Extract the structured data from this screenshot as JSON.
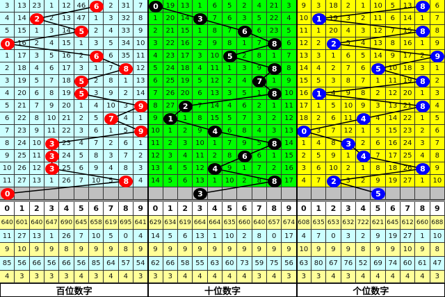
{
  "colors": {
    "hundreds_bg": "#ccffff",
    "tens_bg": "#00ff00",
    "units_bg": "#ffff00",
    "hundreds_ball": "#ff0000",
    "tens_ball": "#000000",
    "units_ball": "#0000ff",
    "predict_row": "#c0c0c0",
    "stat_yellow": "#ffff99",
    "stat_cyan": "#ccffff"
  },
  "digits": [
    "0",
    "1",
    "2",
    "3",
    "4",
    "5",
    "6",
    "7",
    "8",
    "9"
  ],
  "panels": [
    {
      "label": "百位数字",
      "hits": [
        6,
        2,
        5,
        0,
        6,
        8,
        5,
        5,
        9,
        7,
        9,
        3,
        3,
        3,
        8
      ],
      "predict": 0,
      "rows": [
        [
          3,
          13,
          23,
          1,
          12,
          46,
          6,
          2,
          31,
          7
        ],
        [
          4,
          14,
          2,
          2,
          13,
          47,
          1,
          3,
          32,
          8
        ],
        [
          5,
          15,
          1,
          3,
          14,
          5,
          2,
          4,
          33,
          9
        ],
        [
          0,
          16,
          2,
          4,
          15,
          1,
          3,
          5,
          34,
          10
        ],
        [
          1,
          17,
          3,
          5,
          16,
          2,
          6,
          6,
          35,
          11
        ],
        [
          2,
          18,
          4,
          6,
          17,
          3,
          1,
          7,
          8,
          12
        ],
        [
          3,
          19,
          5,
          7,
          18,
          5,
          2,
          8,
          1,
          13
        ],
        [
          4,
          20,
          6,
          8,
          19,
          5,
          3,
          9,
          2,
          14
        ],
        [
          5,
          21,
          7,
          9,
          20,
          1,
          4,
          10,
          3,
          9
        ],
        [
          6,
          22,
          8,
          10,
          21,
          2,
          5,
          7,
          4,
          1
        ],
        [
          7,
          23,
          9,
          11,
          22,
          3,
          6,
          1,
          5,
          9
        ],
        [
          8,
          24,
          10,
          3,
          23,
          4,
          7,
          2,
          6,
          1
        ],
        [
          9,
          25,
          11,
          3,
          24,
          5,
          8,
          3,
          7,
          2
        ],
        [
          10,
          26,
          12,
          3,
          25,
          6,
          9,
          4,
          8,
          3
        ],
        [
          11,
          27,
          13,
          1,
          26,
          7,
          10,
          5,
          8,
          4
        ]
      ],
      "stats": [
        [
          640,
          601,
          640,
          647,
          690,
          645,
          658,
          619,
          695,
          641
        ],
        [
          11,
          27,
          13,
          1,
          26,
          7,
          10,
          5,
          0,
          4
        ],
        [
          9,
          10,
          9,
          9,
          8,
          9,
          9,
          9,
          8,
          9
        ],
        [
          85,
          56,
          66,
          56,
          66,
          56,
          85,
          64,
          57,
          54
        ],
        [
          4,
          3,
          3,
          3,
          3,
          4,
          3,
          4,
          4,
          3
        ]
      ]
    },
    {
      "label": "十位数字",
      "hits": [
        0,
        3,
        6,
        8,
        5,
        8,
        7,
        8,
        2,
        1,
        4,
        8,
        6,
        4,
        8
      ],
      "predict": 3,
      "rows": [
        [
          0,
          19,
          13,
          1,
          6,
          5,
          2,
          4,
          21,
          3
        ],
        [
          1,
          20,
          14,
          3,
          7,
          6,
          3,
          5,
          22,
          4
        ],
        [
          2,
          21,
          15,
          1,
          8,
          7,
          6,
          6,
          23,
          5
        ],
        [
          3,
          22,
          16,
          2,
          9,
          8,
          1,
          7,
          8,
          6
        ],
        [
          4,
          23,
          17,
          3,
          10,
          5,
          2,
          8,
          1,
          7
        ],
        [
          5,
          24,
          18,
          4,
          11,
          1,
          3,
          9,
          8,
          8
        ],
        [
          6,
          25,
          19,
          5,
          12,
          2,
          4,
          7,
          1,
          9
        ],
        [
          7,
          26,
          20,
          6,
          13,
          3,
          5,
          1,
          8,
          10
        ],
        [
          8,
          27,
          2,
          7,
          14,
          4,
          6,
          2,
          1,
          11
        ],
        [
          9,
          1,
          1,
          8,
          15,
          5,
          7,
          3,
          2,
          12
        ],
        [
          10,
          1,
          2,
          9,
          4,
          6,
          8,
          4,
          3,
          13
        ],
        [
          11,
          2,
          3,
          10,
          1,
          7,
          9,
          5,
          8,
          14
        ],
        [
          12,
          3,
          4,
          11,
          2,
          8,
          6,
          6,
          1,
          15
        ],
        [
          13,
          4,
          5,
          12,
          4,
          9,
          1,
          7,
          2,
          16
        ],
        [
          14,
          5,
          6,
          13,
          1,
          10,
          2,
          8,
          8,
          17
        ]
      ],
      "stats": [
        [
          629,
          634,
          619,
          664,
          664,
          635,
          660,
          640,
          657,
          674
        ],
        [
          14,
          5,
          6,
          13,
          1,
          10,
          2,
          8,
          0,
          17
        ],
        [
          9,
          9,
          9,
          9,
          9,
          9,
          9,
          9,
          9,
          9
        ],
        [
          62,
          66,
          58,
          55,
          63,
          60,
          73,
          59,
          75,
          56
        ],
        [
          3,
          3,
          4,
          4,
          4,
          4,
          4,
          3,
          4,
          3
        ]
      ]
    },
    {
      "label": "个位数字",
      "hits": [
        8,
        1,
        8,
        2,
        9,
        5,
        8,
        1,
        8,
        4,
        0,
        3,
        4,
        8,
        2
      ],
      "predict": 5,
      "rows": [
        [
          9,
          3,
          18,
          2,
          1,
          10,
          5,
          13,
          8,
          6
        ],
        [
          10,
          1,
          19,
          3,
          2,
          11,
          6,
          14,
          1,
          7
        ],
        [
          11,
          1,
          20,
          4,
          3,
          12,
          7,
          15,
          8,
          8
        ],
        [
          12,
          2,
          2,
          5,
          4,
          13,
          8,
          16,
          1,
          9
        ],
        [
          13,
          3,
          1,
          6,
          5,
          14,
          9,
          17,
          2,
          9
        ],
        [
          14,
          4,
          2,
          7,
          6,
          5,
          10,
          18,
          3,
          1
        ],
        [
          15,
          5,
          3,
          8,
          7,
          1,
          11,
          19,
          8,
          2
        ],
        [
          16,
          1,
          4,
          9,
          8,
          2,
          12,
          20,
          1,
          3
        ],
        [
          17,
          1,
          5,
          10,
          9,
          3,
          13,
          21,
          8,
          4
        ],
        [
          18,
          2,
          6,
          11,
          4,
          4,
          14,
          22,
          1,
          5
        ],
        [
          0,
          3,
          7,
          12,
          1,
          5,
          15,
          23,
          2,
          6
        ],
        [
          1,
          4,
          8,
          3,
          2,
          6,
          16,
          24,
          3,
          7
        ],
        [
          2,
          5,
          9,
          1,
          4,
          7,
          17,
          25,
          4,
          8
        ],
        [
          3,
          6,
          10,
          2,
          1,
          8,
          18,
          26,
          8,
          9
        ],
        [
          4,
          7,
          2,
          3,
          2,
          9,
          19,
          27,
          1,
          10
        ]
      ],
      "stats": [
        [
          608,
          635,
          653,
          632,
          722,
          621,
          645,
          612,
          660,
          688
        ],
        [
          4,
          7,
          0,
          3,
          2,
          9,
          19,
          27,
          1,
          10
        ],
        [
          10,
          9,
          9,
          9,
          8,
          9,
          9,
          10,
          9,
          8
        ],
        [
          63,
          80,
          67,
          76,
          52,
          69,
          74,
          60,
          61,
          47
        ],
        [
          3,
          3,
          4,
          3,
          4,
          4,
          4,
          4,
          4,
          3
        ]
      ]
    }
  ]
}
